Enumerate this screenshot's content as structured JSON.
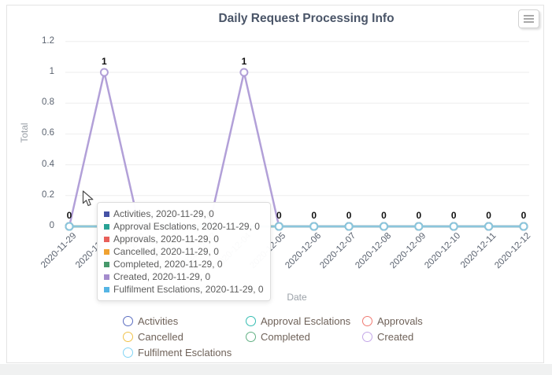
{
  "header": {
    "title": "Daily Request Processing Info",
    "menu_icon": "hamburger-icon"
  },
  "chart_data": {
    "type": "line",
    "title": "Daily Request Processing Info",
    "xlabel": "Date",
    "ylabel": "Total",
    "ylim": [
      0,
      1.2
    ],
    "y_ticks": [
      0,
      0.2,
      0.4,
      0.6,
      0.8,
      1,
      1.2
    ],
    "grid": true,
    "legend_position": "bottom",
    "x": [
      "2020-11-29",
      "2020-11-30",
      "2020-12-01",
      "2020-12-02",
      "2020-12-03",
      "2020-12-04",
      "2020-12-05",
      "2020-12-06",
      "2020-12-07",
      "2020-12-08",
      "2020-12-09",
      "2020-12-10",
      "2020-12-11",
      "2020-12-12"
    ],
    "series": [
      {
        "name": "Activities",
        "line_color": "#5b6dc0",
        "legend_color": "#5b6dc0",
        "swatch_color": "#4552a5",
        "values": [
          0,
          0,
          0,
          0,
          0,
          0,
          0,
          0,
          0,
          0,
          0,
          0,
          0,
          0
        ]
      },
      {
        "name": "Approval Esclations",
        "line_color": "#35bdb2",
        "legend_color": "#35bdb2",
        "swatch_color": "#27a295",
        "values": [
          0,
          0,
          0,
          0,
          0,
          0,
          0,
          0,
          0,
          0,
          0,
          0,
          0,
          0
        ]
      },
      {
        "name": "Approvals",
        "line_color": "#f07a72",
        "legend_color": "#f07a72",
        "swatch_color": "#e8605a",
        "values": [
          0,
          0,
          0,
          0,
          0,
          0,
          0,
          0,
          0,
          0,
          0,
          0,
          0,
          0
        ]
      },
      {
        "name": "Cancelled",
        "line_color": "#f0c24a",
        "legend_color": "#f0c24a",
        "swatch_color": "#f0a231",
        "values": [
          0,
          0,
          0,
          0,
          0,
          0,
          0,
          0,
          0,
          0,
          0,
          0,
          0,
          0
        ]
      },
      {
        "name": "Completed",
        "line_color": "#61b083",
        "legend_color": "#61b083",
        "swatch_color": "#47996b",
        "values": [
          0,
          0,
          0,
          0,
          0,
          0,
          0,
          0,
          0,
          0,
          0,
          0,
          0,
          0
        ]
      },
      {
        "name": "Created",
        "line_color": "#b2a0d8",
        "legend_color": "#c4a7e8",
        "swatch_color": "#a48ccd",
        "values": [
          0,
          1,
          0,
          0,
          0,
          1,
          0,
          0,
          0,
          0,
          0,
          0,
          0,
          0
        ]
      },
      {
        "name": "Fulfilment Esclations",
        "line_color": "#8ac6dd",
        "legend_color": "#82d4f5",
        "swatch_color": "#55b5e5",
        "values": [
          0,
          0,
          0,
          0,
          0,
          0,
          0,
          0,
          0,
          0,
          0,
          0,
          0,
          0
        ]
      }
    ],
    "label_series": "Created"
  },
  "tooltip": {
    "date": "2020-11-29",
    "rows": [
      {
        "name": "Activities",
        "date": "2020-11-29",
        "value": 0,
        "color": "#4552a5"
      },
      {
        "name": "Approval Esclations",
        "date": "2020-11-29",
        "value": 0,
        "color": "#27a295"
      },
      {
        "name": "Approvals",
        "date": "2020-11-29",
        "value": 0,
        "color": "#e8605a"
      },
      {
        "name": "Cancelled",
        "date": "2020-11-29",
        "value": 0,
        "color": "#f0a231"
      },
      {
        "name": "Completed",
        "date": "2020-11-29",
        "value": 0,
        "color": "#47996b"
      },
      {
        "name": "Created",
        "date": "2020-11-29",
        "value": 0,
        "color": "#a48ccd"
      },
      {
        "name": "Fulfilment Esclations",
        "date": "2020-11-29",
        "value": 0,
        "color": "#55b5e5"
      }
    ]
  },
  "legend": {
    "items": [
      "Activities",
      "Approval Esclations",
      "Approvals",
      "Cancelled",
      "Completed",
      "Created",
      "Fulfilment Esclations"
    ]
  }
}
